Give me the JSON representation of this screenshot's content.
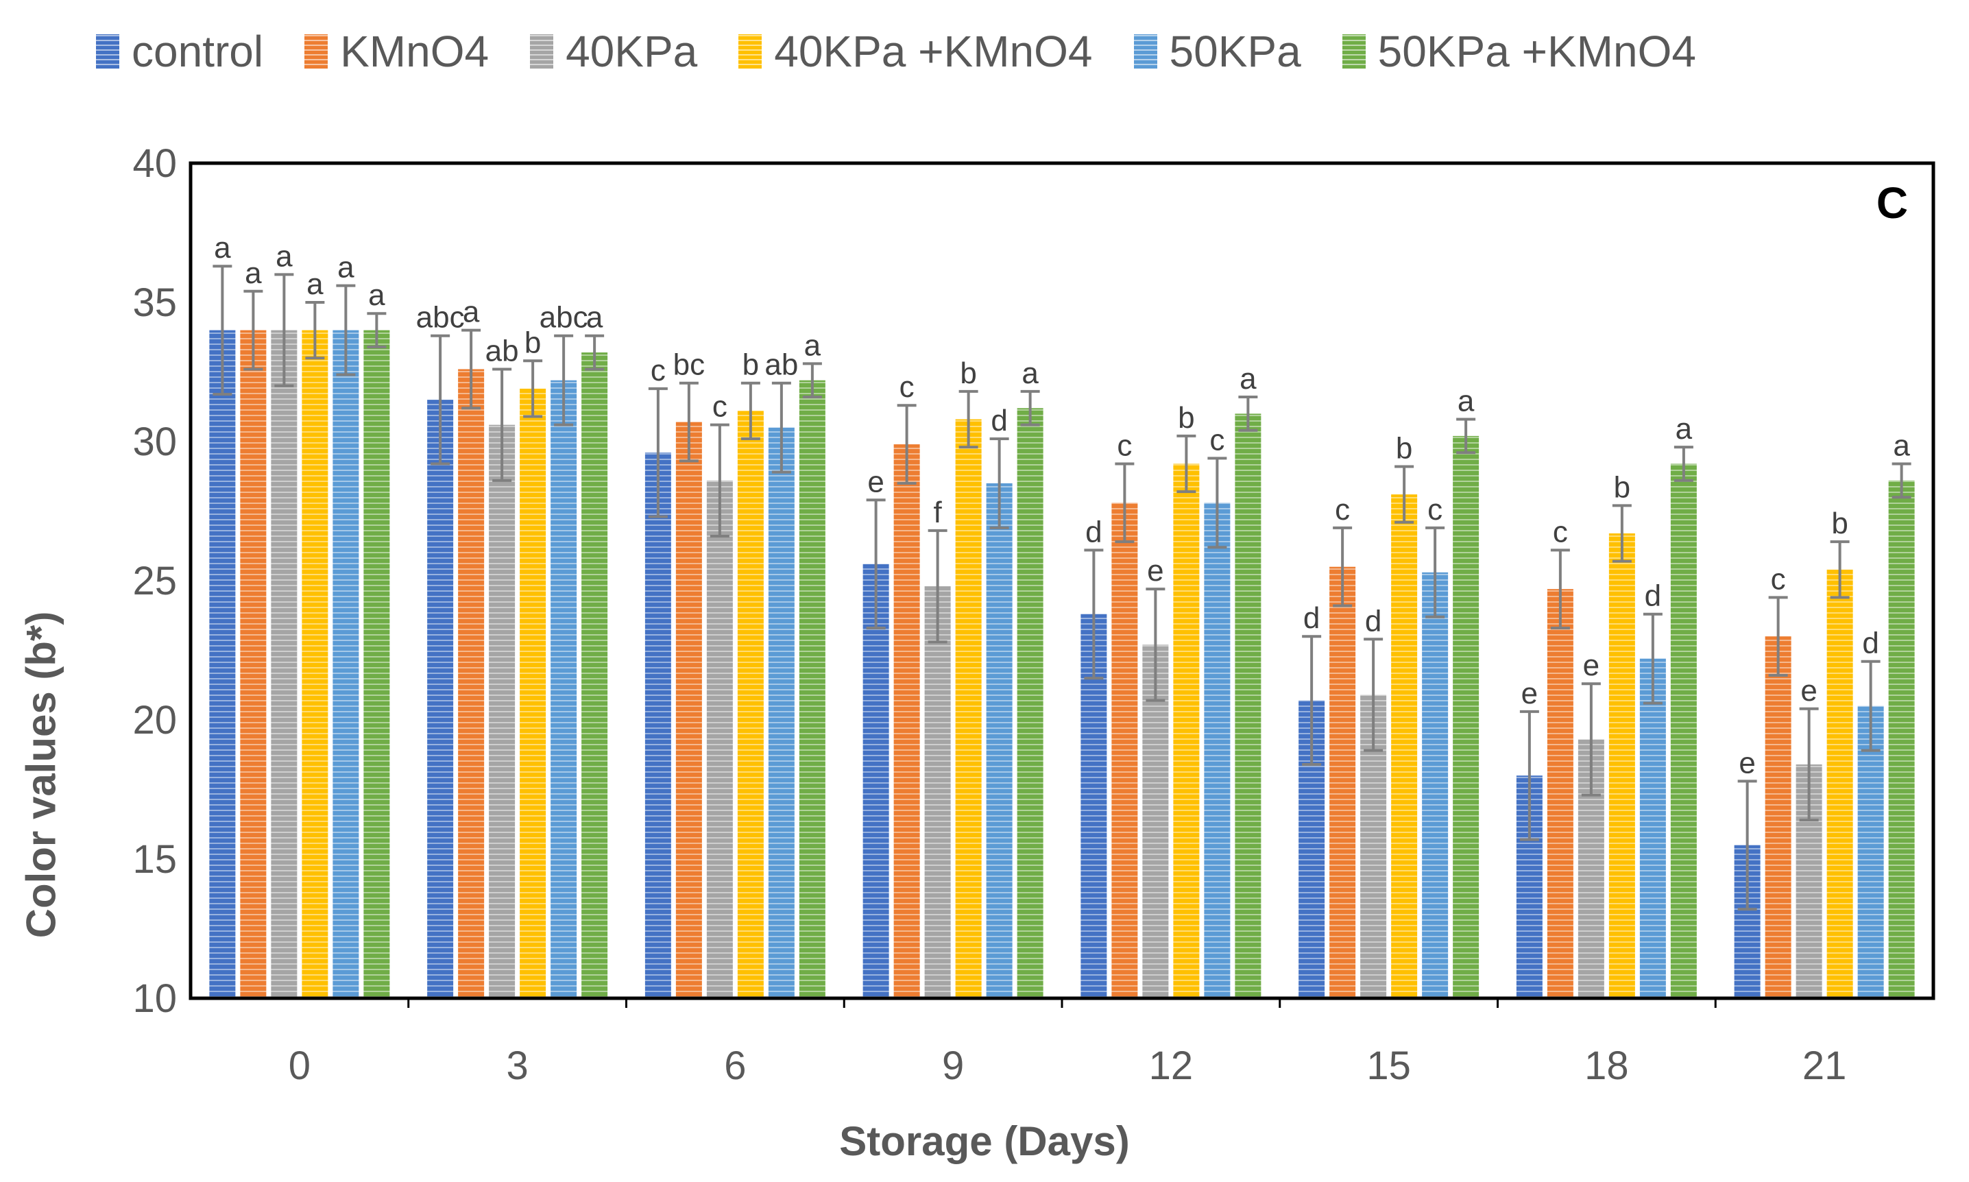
{
  "chart_data": {
    "type": "bar",
    "panel_label": "C",
    "xlabel": "Storage (Days)",
    "ylabel": "Color values (b*)",
    "ylim": [
      10,
      40
    ],
    "yticks": [
      10,
      15,
      20,
      25,
      30,
      35,
      40
    ],
    "categories": [
      "0",
      "3",
      "6",
      "9",
      "12",
      "15",
      "18",
      "21"
    ],
    "legend_position": "top",
    "series": [
      {
        "name": "control",
        "color": "#4472C4",
        "values": [
          34.0,
          31.5,
          29.6,
          25.6,
          23.8,
          20.7,
          18.0,
          15.5
        ],
        "errors": [
          2.3,
          2.3,
          2.3,
          2.3,
          2.3,
          2.3,
          2.3,
          2.3
        ],
        "labels": [
          "a",
          "abc",
          "c",
          "e",
          "d",
          "d",
          "e",
          "e"
        ]
      },
      {
        "name": "KMnO4",
        "color": "#ED7D31",
        "values": [
          34.0,
          32.6,
          30.7,
          29.9,
          27.8,
          25.5,
          24.7,
          23.0
        ],
        "errors": [
          1.4,
          1.4,
          1.4,
          1.4,
          1.4,
          1.4,
          1.4,
          1.4
        ],
        "labels": [
          "a",
          "a",
          "bc",
          "c",
          "c",
          "c",
          "c",
          "c"
        ]
      },
      {
        "name": "40KPa",
        "color": "#A5A5A5",
        "values": [
          34.0,
          30.6,
          28.6,
          24.8,
          22.7,
          20.9,
          19.3,
          18.4
        ],
        "errors": [
          2.0,
          2.0,
          2.0,
          2.0,
          2.0,
          2.0,
          2.0,
          2.0
        ],
        "labels": [
          "a",
          "ab",
          "c",
          "f",
          "e",
          "d",
          "e",
          "e"
        ]
      },
      {
        "name": "40KPa +KMnO4",
        "color": "#FFC000",
        "values": [
          34.0,
          31.9,
          31.1,
          30.8,
          29.2,
          28.1,
          26.7,
          25.4
        ],
        "errors": [
          1.0,
          1.0,
          1.0,
          1.0,
          1.0,
          1.0,
          1.0,
          1.0
        ],
        "labels": [
          "a",
          "b",
          "b",
          "b",
          "b",
          "b",
          "b",
          "b"
        ]
      },
      {
        "name": "50KPa",
        "color": "#5B9BD5",
        "values": [
          34.0,
          32.2,
          30.5,
          28.5,
          27.8,
          25.3,
          22.2,
          20.5
        ],
        "errors": [
          1.6,
          1.6,
          1.6,
          1.6,
          1.6,
          1.6,
          1.6,
          1.6
        ],
        "labels": [
          "a",
          "abc",
          "ab",
          "d",
          "c",
          "c",
          "d",
          "d"
        ]
      },
      {
        "name": "50KPa +KMnO4",
        "color": "#70AD47",
        "values": [
          34.0,
          33.2,
          32.2,
          31.2,
          31.0,
          30.2,
          29.2,
          28.6
        ],
        "errors": [
          0.6,
          0.6,
          0.6,
          0.6,
          0.6,
          0.6,
          0.6,
          0.6
        ],
        "labels": [
          "a",
          "a",
          "a",
          "a",
          "a",
          "a",
          "a",
          "a"
        ]
      }
    ]
  }
}
